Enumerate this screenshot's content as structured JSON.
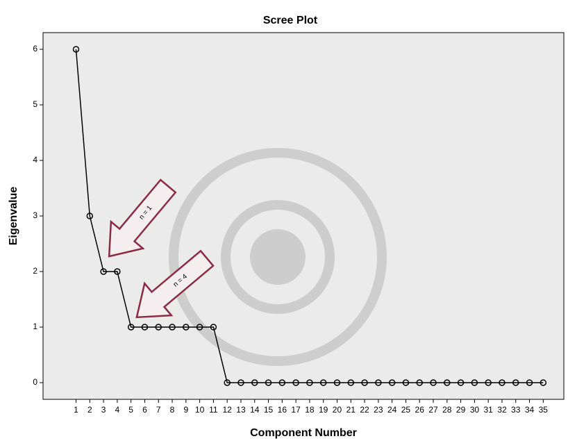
{
  "chart_data": {
    "type": "line",
    "title": "Scree Plot",
    "x_label": "Component Number",
    "y_label": "Eigenvalue",
    "x": [
      1,
      2,
      3,
      4,
      5,
      6,
      7,
      8,
      9,
      10,
      11,
      12,
      13,
      14,
      15,
      16,
      17,
      18,
      19,
      20,
      21,
      22,
      23,
      24,
      25,
      26,
      27,
      28,
      29,
      30,
      31,
      32,
      33,
      34,
      35
    ],
    "values": [
      6,
      3,
      2,
      2,
      1,
      1,
      1,
      1,
      1,
      1,
      1,
      0,
      0,
      0,
      0,
      0,
      0,
      0,
      0,
      0,
      0,
      0,
      0,
      0,
      0,
      0,
      0,
      0,
      0,
      0,
      0,
      0,
      0,
      0,
      0
    ],
    "color": "#000000",
    "xlim": [
      -1.4,
      36.5
    ],
    "xticks": [
      1,
      2,
      3,
      4,
      5,
      6,
      7,
      8,
      9,
      10,
      11,
      12,
      13,
      14,
      15,
      16,
      17,
      18,
      19,
      20,
      21,
      22,
      23,
      24,
      25,
      26,
      27,
      28,
      29,
      30,
      31,
      32,
      33,
      34,
      35
    ],
    "ylim": [
      -0.3,
      6.3
    ],
    "yticks": [
      0,
      1,
      2,
      3,
      4,
      5,
      6
    ],
    "annotations": [
      "n = 1",
      "n = 4"
    ]
  }
}
